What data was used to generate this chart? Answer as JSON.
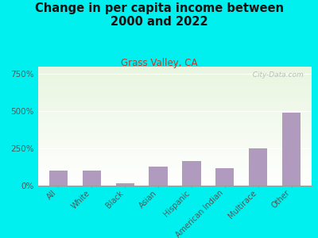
{
  "title": "Change in per capita income between\n2000 and 2022",
  "subtitle": "Grass Valley, CA",
  "categories": [
    "All",
    "White",
    "Black",
    "Asian",
    "Hispanic",
    "American Indian",
    "Multirace",
    "Other"
  ],
  "values": [
    100,
    100,
    15,
    130,
    165,
    120,
    250,
    490
  ],
  "bar_color": "#b09abe",
  "title_fontsize": 10.5,
  "subtitle_fontsize": 8.5,
  "subtitle_color": "#c0392b",
  "background_outer": "#00f0f0",
  "yticks": [
    0,
    250,
    500,
    750
  ],
  "ylim": [
    0,
    800
  ],
  "watermark": "  City-Data.com",
  "watermark_color": "#aaaaaa"
}
